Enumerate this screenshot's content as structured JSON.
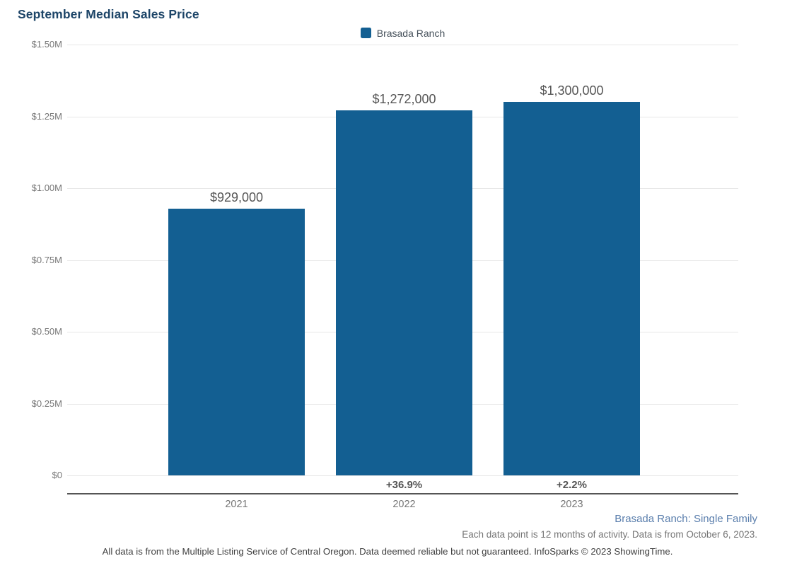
{
  "chart_data": {
    "type": "bar",
    "title": "September Median Sales Price",
    "categories": [
      "2021",
      "2022",
      "2023"
    ],
    "series": [
      {
        "name": "Brasada Ranch",
        "color": "#135f92",
        "values": [
          929000,
          1272000,
          1300000
        ]
      }
    ],
    "data_labels": [
      "$929,000",
      "$1,272,000",
      "$1,300,000"
    ],
    "pct_change_labels": [
      "",
      "+36.9%",
      "+2.2%"
    ],
    "xlabel": "",
    "ylabel": "",
    "ylim": [
      0,
      1500000
    ],
    "ytick_labels": [
      "$1.50M",
      "$1.25M",
      "$1.00M",
      "$0.75M",
      "$0.50M",
      "$0.25M",
      "$0"
    ],
    "grid": true,
    "legend_position": "top-center"
  },
  "legend": {
    "items": [
      {
        "label": "Brasada Ranch",
        "color": "#135f92"
      }
    ]
  },
  "footer": {
    "series_note": "Brasada Ranch: Single Family",
    "data_note": "Each data point is 12 months of activity. Data is from October 6, 2023.",
    "disclaimer": "All data is from the Multiple Listing Service of Central Oregon. Data deemed reliable but not guaranteed. InfoSparks © 2023 ShowingTime."
  },
  "colors": {
    "bar": "#135f92",
    "title": "#1d4568",
    "tick_label": "#777777",
    "value_label": "#555555",
    "gridline": "#e7e7e7",
    "axis_line": "#555555",
    "footer_series": "#5b7fad",
    "footer_note": "#757575",
    "disclaimer": "#3f3f3f"
  }
}
